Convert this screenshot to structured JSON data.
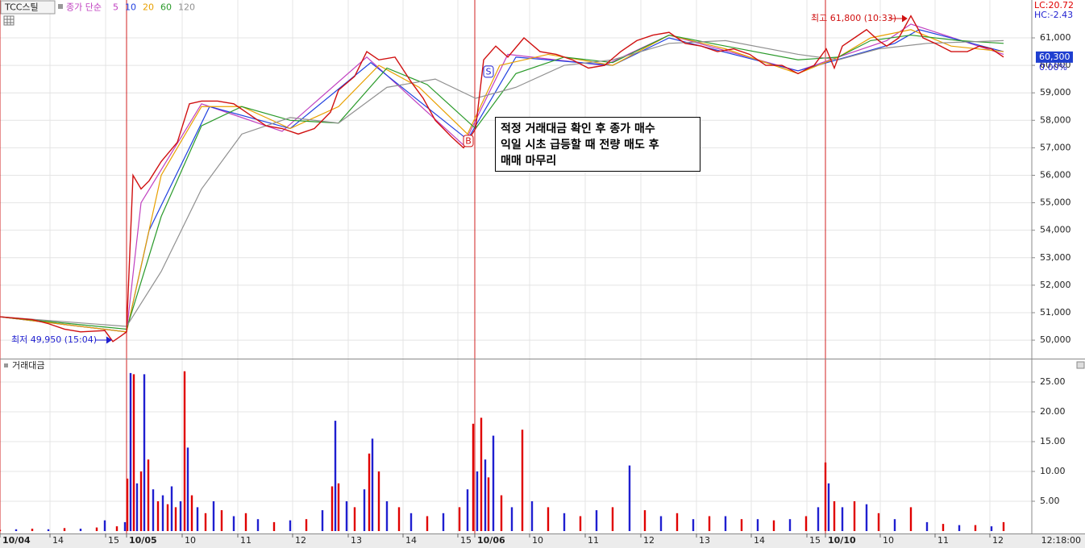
{
  "header": {
    "symbol": "TCC스틸",
    "ma_label": "종가 단순",
    "lc": "LC:20.72",
    "hc": "HC:-2.43"
  },
  "chart_data": [
    {
      "type": "line",
      "color": "#d01010",
      "x": [
        0,
        8,
        12,
        16,
        20,
        26,
        28,
        30,
        31.4,
        33,
        35,
        37,
        40,
        44,
        47,
        50,
        54,
        58,
        62,
        66,
        70,
        74,
        78,
        82,
        84,
        88,
        91,
        94,
        98,
        102,
        105,
        108,
        112,
        115,
        118,
        120,
        123,
        126,
        130,
        134,
        138,
        142,
        146,
        150,
        154,
        158,
        162,
        166,
        170,
        174,
        178,
        182,
        186,
        190,
        194,
        198,
        202,
        205,
        207,
        209,
        212,
        215,
        218,
        220,
        223,
        226,
        229,
        232,
        236,
        240,
        243,
        246,
        249
      ],
      "values": [
        50850,
        50750,
        50600,
        50400,
        50300,
        50350,
        49950,
        50150,
        50300,
        56000,
        55500,
        55800,
        56500,
        57200,
        58600,
        58700,
        58700,
        58600,
        58200,
        57800,
        57700,
        57500,
        57700,
        58300,
        59100,
        59600,
        60500,
        60200,
        60300,
        59400,
        58800,
        58000,
        57400,
        57000,
        57700,
        60200,
        60700,
        60300,
        61000,
        60500,
        60400,
        60200,
        59900,
        60000,
        60500,
        60900,
        61100,
        61200,
        60800,
        60700,
        60500,
        60600,
        60400,
        60000,
        60000,
        59700,
        60000,
        60600,
        59900,
        60700,
        61000,
        61300,
        60900,
        60700,
        61000,
        61800,
        61000,
        60800,
        60500,
        60500,
        60700,
        60600,
        60300
      ],
      "series": [
        {
          "name": "5",
          "color": "#c040c0",
          "x": [
            0,
            31.4,
            35,
            50,
            70,
            91,
            115,
            126,
            150,
            166,
            198,
            220,
            226,
            249
          ],
          "values": [
            50850,
            50300,
            55000,
            58600,
            57600,
            60300,
            57100,
            60400,
            60000,
            61100,
            59800,
            60900,
            61500,
            60400
          ]
        },
        {
          "name": "10",
          "color": "#2040e0",
          "x": [
            0,
            31.4,
            37,
            52,
            72,
            92,
            116,
            128,
            152,
            166,
            198,
            222,
            228,
            249
          ],
          "values": [
            50850,
            50300,
            54000,
            58500,
            57700,
            60100,
            57300,
            60300,
            60000,
            61000,
            59800,
            60800,
            61300,
            60500
          ]
        },
        {
          "name": "20",
          "color": "#e8a000",
          "x": [
            0,
            31.4,
            40,
            50,
            60,
            72,
            84,
            94,
            104,
            116,
            124,
            136,
            152,
            166,
            180,
            198,
            208,
            216,
            226,
            236,
            249
          ],
          "values": [
            50850,
            50300,
            56000,
            58500,
            58500,
            57700,
            58500,
            60000,
            59200,
            57500,
            60000,
            60400,
            60000,
            61100,
            60600,
            59700,
            60300,
            61000,
            61300,
            60700,
            60500
          ]
        },
        {
          "name": "60",
          "color": "#2a9a2a",
          "x": [
            0,
            31.4,
            40,
            50,
            60,
            72,
            84,
            96,
            106,
            118,
            128,
            140,
            152,
            166,
            180,
            198,
            208,
            216,
            226,
            238,
            249
          ],
          "values": [
            50850,
            50400,
            54500,
            57800,
            58500,
            58000,
            57900,
            59900,
            59300,
            57700,
            59700,
            60300,
            60100,
            61100,
            60700,
            60200,
            60300,
            60900,
            61100,
            60900,
            60800
          ]
        },
        {
          "name": "120",
          "color": "#909090",
          "x": [
            0,
            31.4,
            40,
            50,
            60,
            72,
            84,
            96,
            108,
            118,
            128,
            140,
            152,
            166,
            180,
            198,
            208,
            218,
            230,
            249
          ],
          "values": [
            50850,
            50500,
            52500,
            55500,
            57500,
            58100,
            57900,
            59200,
            59500,
            58800,
            59200,
            60000,
            60200,
            60800,
            60900,
            60400,
            60200,
            60600,
            60800,
            60900
          ]
        }
      ],
      "xlim": [
        0,
        256
      ],
      "ylim": [
        49328,
        62378
      ],
      "yticks": [
        {
          "value": 50000,
          "label": "50,000"
        },
        {
          "value": 51000,
          "label": "51,000"
        },
        {
          "value": 52000,
          "label": "52,000"
        },
        {
          "value": 53000,
          "label": "53,000"
        },
        {
          "value": 54000,
          "label": "54,000"
        },
        {
          "value": 55000,
          "label": "55,000"
        },
        {
          "value": 56000,
          "label": "56,000"
        },
        {
          "value": 57000,
          "label": "57,000"
        },
        {
          "value": 58000,
          "label": "58,000"
        },
        {
          "value": 59000,
          "label": "59,000"
        },
        {
          "value": 60000,
          "label": "60,000"
        },
        {
          "value": 61000,
          "label": "61,000"
        }
      ],
      "grid": true,
      "last": {
        "value": 60300,
        "label": "60,300"
      },
      "change": "0.00%",
      "signals": [
        {
          "label": "S",
          "x": 121.2,
          "value": 59770
        },
        {
          "label": "B",
          "x": 116.2,
          "value": 57250
        }
      ],
      "annotations": [
        "최고 61,800 (10:33)",
        "최저 49,950 (15:04)"
      ],
      "note": [
        "적정 거래대금 확인 후 종가 매수",
        "익일 시초 급등할 때 전량 매도 후",
        "매매 마무리"
      ]
    },
    {
      "type": "bar",
      "title": "거래대금",
      "colors": [
        "#e00000",
        "#1f1fd0"
      ],
      "x": [
        0,
        4,
        8,
        12,
        16,
        20,
        24,
        26,
        29,
        31,
        31.6,
        32.4,
        33.2,
        34,
        35,
        35.8,
        36.8,
        38,
        39.2,
        40.4,
        41.6,
        42.6,
        43.6,
        44.8,
        45.8,
        46.6,
        47.6,
        49,
        51,
        53,
        55,
        58,
        61,
        64,
        68,
        72,
        76,
        80,
        82.4,
        83.2,
        84,
        86,
        88,
        90.4,
        91.6,
        92.4,
        94,
        96,
        99,
        102,
        106,
        110,
        114,
        116,
        117.4,
        118.4,
        119.4,
        120.4,
        121.2,
        122.4,
        124.4,
        127,
        129.6,
        132,
        136,
        140,
        144,
        148,
        152,
        156.2,
        160,
        164,
        168,
        172,
        176,
        180,
        184,
        188,
        192,
        196,
        200,
        203,
        204.8,
        205.6,
        207,
        209,
        212,
        215,
        218,
        222,
        226,
        230,
        234,
        238,
        242,
        246,
        249
      ],
      "values": [
        0.2,
        0.3,
        0.4,
        0.3,
        0.5,
        0.4,
        0.6,
        1.8,
        0.8,
        1.5,
        8.8,
        26.5,
        26.3,
        8,
        10,
        26.3,
        12,
        7,
        5,
        6,
        4.5,
        7.5,
        4,
        5,
        26.8,
        14,
        6,
        4,
        3,
        5,
        3.5,
        2.5,
        3,
        2,
        1.5,
        1.8,
        2,
        3.5,
        7.5,
        18.5,
        8,
        5,
        4,
        7,
        13,
        15.5,
        10,
        5,
        4,
        3,
        2.5,
        3,
        4,
        7,
        18,
        10,
        19,
        12,
        9,
        16,
        6,
        4,
        17,
        5,
        4,
        3,
        2.5,
        3.5,
        4,
        11,
        3.5,
        2.5,
        3,
        2,
        2.5,
        2.5,
        2,
        2,
        1.8,
        2,
        2.5,
        4,
        11.5,
        8,
        5,
        4,
        5,
        4.5,
        3,
        2,
        4,
        1.5,
        1.2,
        1,
        1,
        0.8,
        1.5
      ],
      "xlim": [
        0,
        256
      ],
      "ylim": [
        0,
        28.65
      ],
      "yticks": [
        {
          "value": 5,
          "label": "5.00"
        },
        {
          "value": 10,
          "label": "10.00"
        },
        {
          "value": 15,
          "label": "15.00"
        },
        {
          "value": 20,
          "label": "20.00"
        },
        {
          "value": 25,
          "label": "25.00"
        }
      ],
      "xticks": [
        {
          "value": 0,
          "label": "10/04"
        },
        {
          "value": 12.4,
          "label": "14"
        },
        {
          "value": 26.2,
          "label": "15"
        },
        {
          "value": 31.4,
          "label": "10/05"
        },
        {
          "value": 45.2,
          "label": "10"
        },
        {
          "value": 59,
          "label": "11"
        },
        {
          "value": 72.6,
          "label": "12"
        },
        {
          "value": 86.4,
          "label": "13"
        },
        {
          "value": 100,
          "label": "14"
        },
        {
          "value": 113.6,
          "label": "15"
        },
        {
          "value": 117.8,
          "label": "10/06"
        },
        {
          "value": 131.4,
          "label": "10"
        },
        {
          "value": 145.2,
          "label": "11"
        },
        {
          "value": 159,
          "label": "12"
        },
        {
          "value": 172.8,
          "label": "13"
        },
        {
          "value": 186.4,
          "label": "14"
        },
        {
          "value": 200.2,
          "label": "15"
        },
        {
          "value": 204.8,
          "label": "10/10"
        },
        {
          "value": 218.4,
          "label": "10"
        },
        {
          "value": 232,
          "label": "11"
        },
        {
          "value": 245.6,
          "label": "12"
        }
      ],
      "grid": true,
      "time_label": "12:18:00"
    }
  ]
}
